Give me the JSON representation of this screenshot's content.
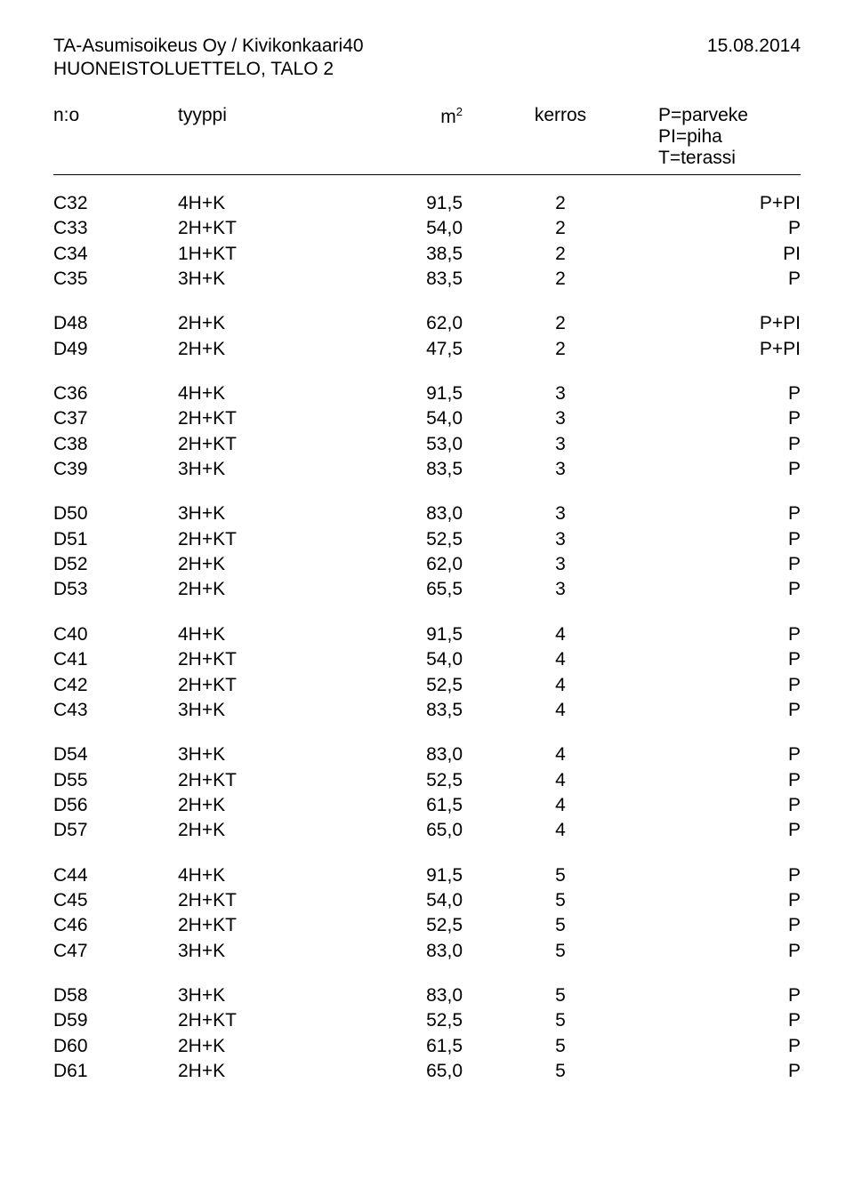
{
  "header": {
    "left": "TA-Asumisoikeus Oy / Kivikonkaari40",
    "date": "15.08.2014",
    "subtitle": "HUONEISTOLUETTELO, TALO 2"
  },
  "columns": {
    "no": "n:o",
    "type": "tyyppi",
    "m2_base": "m",
    "m2_sup": "2",
    "floor": "kerros",
    "last_lines": [
      "P=parveke",
      "PI=piha",
      "T=terassi"
    ]
  },
  "groups": [
    [
      {
        "no": "C32",
        "type": "4H+K",
        "m2": "91,5",
        "floor": "2",
        "last": "P+PI"
      },
      {
        "no": "C33",
        "type": "2H+KT",
        "m2": "54,0",
        "floor": "2",
        "last": "P"
      },
      {
        "no": "C34",
        "type": "1H+KT",
        "m2": "38,5",
        "floor": "2",
        "last": "PI"
      },
      {
        "no": "C35",
        "type": "3H+K",
        "m2": "83,5",
        "floor": "2",
        "last": "P"
      }
    ],
    [
      {
        "no": "D48",
        "type": "2H+K",
        "m2": "62,0",
        "floor": "2",
        "last": "P+PI"
      },
      {
        "no": "D49",
        "type": "2H+K",
        "m2": "47,5",
        "floor": "2",
        "last": "P+PI"
      }
    ],
    [
      {
        "no": "C36",
        "type": "4H+K",
        "m2": "91,5",
        "floor": "3",
        "last": "P"
      },
      {
        "no": "C37",
        "type": "2H+KT",
        "m2": "54,0",
        "floor": "3",
        "last": "P"
      },
      {
        "no": "C38",
        "type": "2H+KT",
        "m2": "53,0",
        "floor": "3",
        "last": "P"
      },
      {
        "no": "C39",
        "type": "3H+K",
        "m2": "83,5",
        "floor": "3",
        "last": "P"
      }
    ],
    [
      {
        "no": "D50",
        "type": "3H+K",
        "m2": "83,0",
        "floor": "3",
        "last": "P"
      },
      {
        "no": "D51",
        "type": "2H+KT",
        "m2": "52,5",
        "floor": "3",
        "last": "P"
      },
      {
        "no": "D52",
        "type": "2H+K",
        "m2": "62,0",
        "floor": "3",
        "last": "P"
      },
      {
        "no": "D53",
        "type": "2H+K",
        "m2": "65,5",
        "floor": "3",
        "last": "P"
      }
    ],
    [
      {
        "no": "C40",
        "type": "4H+K",
        "m2": "91,5",
        "floor": "4",
        "last": "P"
      },
      {
        "no": "C41",
        "type": "2H+KT",
        "m2": "54,0",
        "floor": "4",
        "last": "P"
      },
      {
        "no": "C42",
        "type": "2H+KT",
        "m2": "52,5",
        "floor": "4",
        "last": "P"
      },
      {
        "no": "C43",
        "type": "3H+K",
        "m2": "83,5",
        "floor": "4",
        "last": "P"
      }
    ],
    [
      {
        "no": "D54",
        "type": "3H+K",
        "m2": "83,0",
        "floor": "4",
        "last": "P"
      },
      {
        "no": "D55",
        "type": "2H+KT",
        "m2": "52,5",
        "floor": "4",
        "last": "P"
      },
      {
        "no": "D56",
        "type": "2H+K",
        "m2": "61,5",
        "floor": "4",
        "last": "P"
      },
      {
        "no": "D57",
        "type": "2H+K",
        "m2": "65,0",
        "floor": "4",
        "last": "P"
      }
    ],
    [
      {
        "no": "C44",
        "type": "4H+K",
        "m2": "91,5",
        "floor": "5",
        "last": "P"
      },
      {
        "no": "C45",
        "type": "2H+KT",
        "m2": "54,0",
        "floor": "5",
        "last": "P"
      },
      {
        "no": "C46",
        "type": "2H+KT",
        "m2": "52,5",
        "floor": "5",
        "last": "P"
      },
      {
        "no": "C47",
        "type": "3H+K",
        "m2": "83,0",
        "floor": "5",
        "last": "P"
      }
    ],
    [
      {
        "no": "D58",
        "type": "3H+K",
        "m2": "83,0",
        "floor": "5",
        "last": "P"
      },
      {
        "no": "D59",
        "type": "2H+KT",
        "m2": "52,5",
        "floor": "5",
        "last": "P"
      },
      {
        "no": "D60",
        "type": "2H+K",
        "m2": "61,5",
        "floor": "5",
        "last": "P"
      },
      {
        "no": "D61",
        "type": "2H+K",
        "m2": "65,0",
        "floor": "5",
        "last": "P"
      }
    ]
  ]
}
